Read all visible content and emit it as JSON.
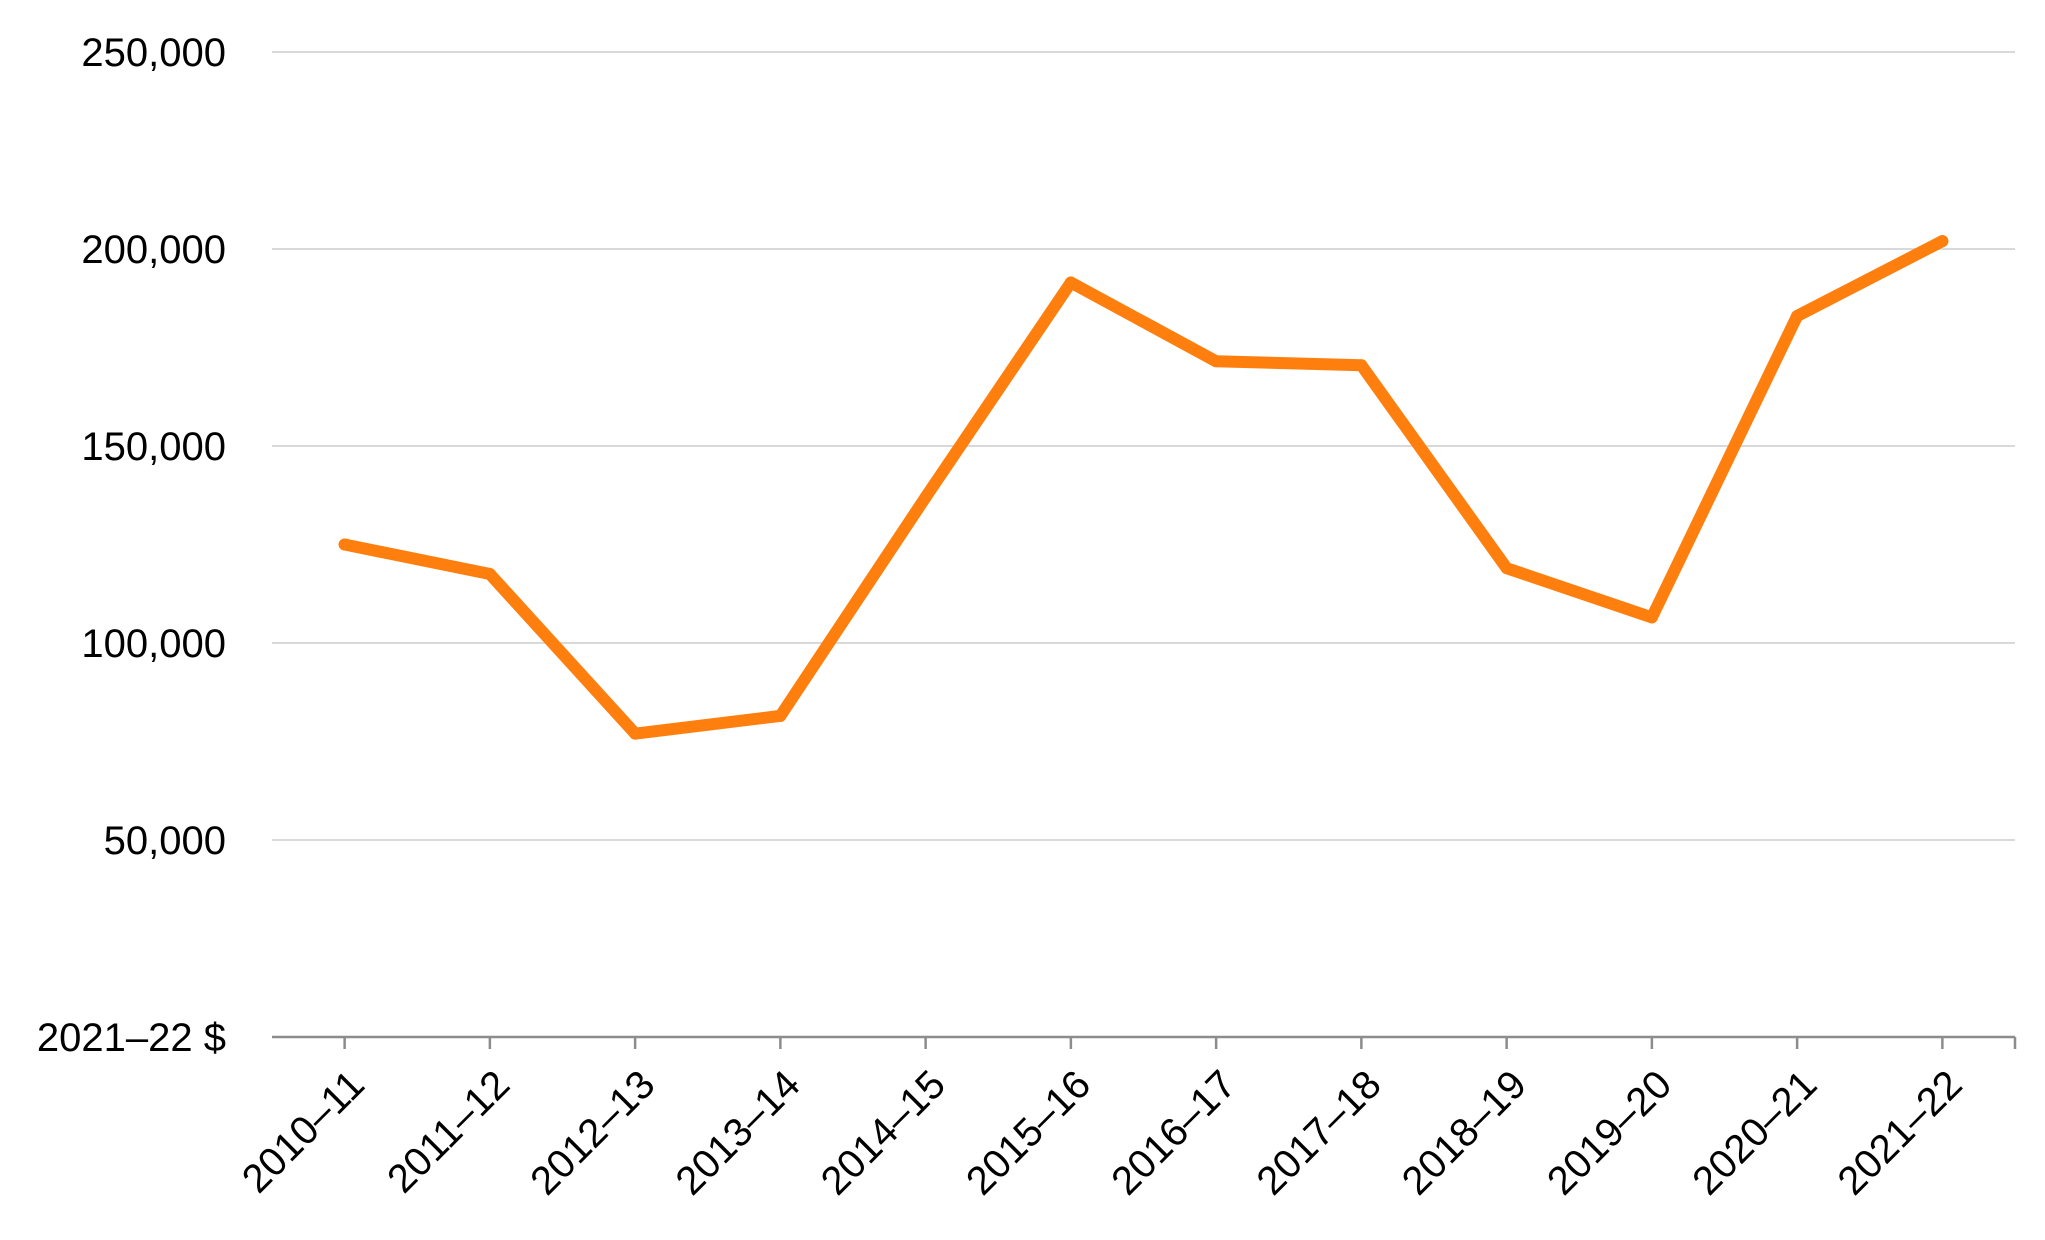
{
  "chart_data": {
    "type": "line",
    "title": "",
    "xlabel": "",
    "ylabel": "",
    "unit_label": "2021–22 $",
    "categories": [
      "2010–11",
      "2011–12",
      "2012–13",
      "2013–14",
      "2014–15",
      "2015–16",
      "2016–17",
      "2017–18",
      "2018–19",
      "2019–20",
      "2020–21",
      "2021–22"
    ],
    "series": [
      {
        "values": [
          125000,
          117500,
          77000,
          81500,
          137000,
          191500,
          171500,
          170500,
          119000,
          106500,
          183000,
          202000
        ]
      }
    ],
    "y_ticks": [
      0,
      50000,
      100000,
      150000,
      200000,
      250000
    ],
    "y_tick_labels": [
      "2021–22 $",
      "50,000",
      "100,000",
      "150,000",
      "200,000",
      "250,000"
    ],
    "ylim": [
      0,
      250000
    ],
    "grid": true,
    "legend": "none",
    "line_color": "#ff7f0e"
  }
}
